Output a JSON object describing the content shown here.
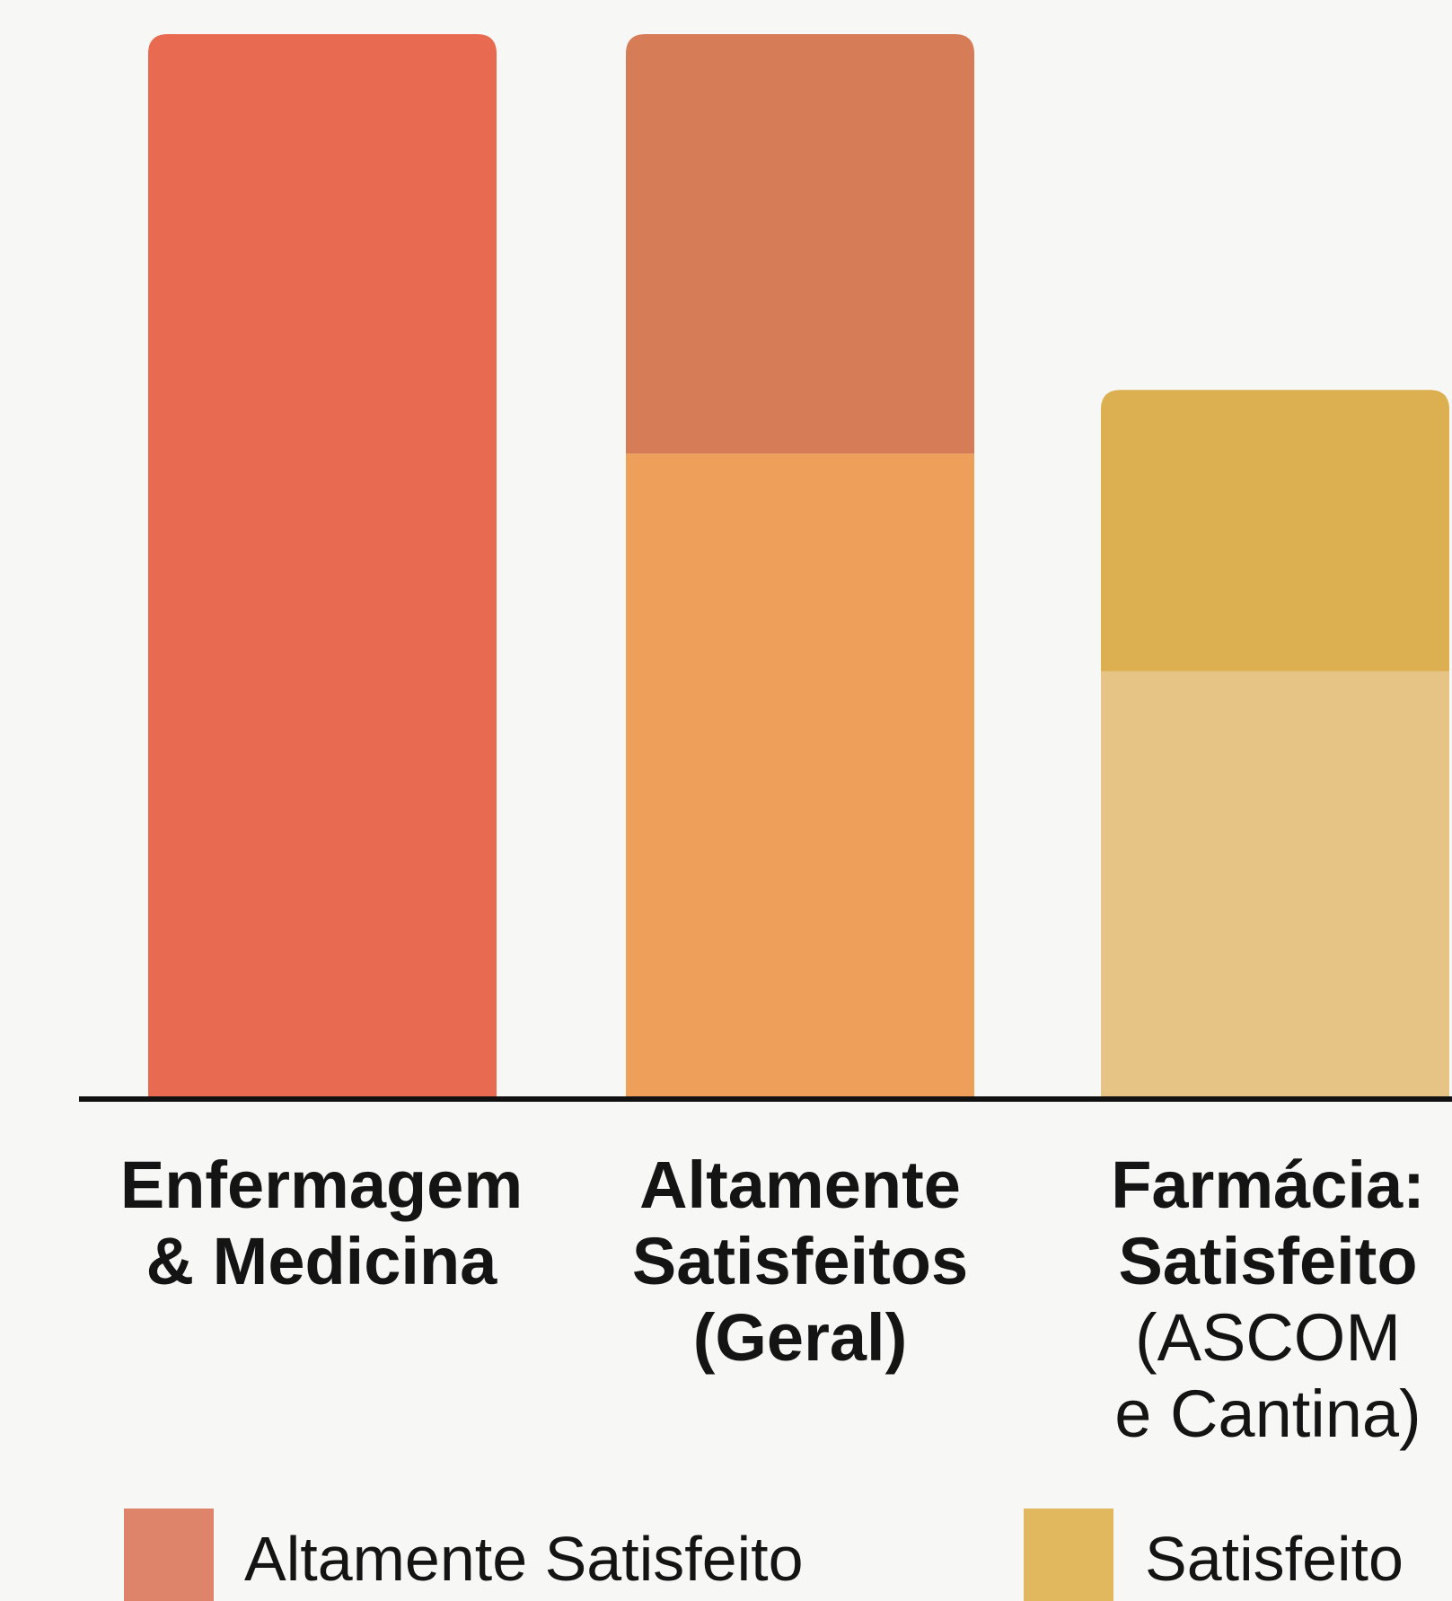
{
  "chart_data": {
    "type": "bar",
    "title": "",
    "xlabel": "",
    "ylabel": "",
    "ylim": [
      0,
      100
    ],
    "grid": false,
    "legend_position": "bottom",
    "categories": [
      {
        "lines": [
          "Enfermagem",
          "& Medicina"
        ]
      },
      {
        "lines": [
          "Altamente",
          "Satisfeitos",
          "(Geral)"
        ]
      },
      {
        "lines": [
          "Farmácia:",
          "Satisfeito",
          "(ASCOM",
          "e Cantina)"
        ]
      }
    ],
    "bars": [
      {
        "segments": [
          {
            "series": "Altamente Satisfeito",
            "value": 100,
            "color": "#e86a50"
          }
        ]
      },
      {
        "segments": [
          {
            "series": "Altamente Satisfeito",
            "value": 60.5,
            "color": "#eea05a"
          },
          {
            "series": "Altamente Satisfeito",
            "value": 39.5,
            "color": "#d67c57"
          }
        ]
      },
      {
        "segments": [
          {
            "series": "Satisfeito",
            "value": 40,
            "color": "#e5c486"
          },
          {
            "series": "Satisfeito",
            "value": 26.5,
            "color": "#dcb050"
          }
        ]
      }
    ],
    "legend": [
      {
        "label": "Altamente Satisfeito",
        "color": "#dd846a"
      },
      {
        "label": "Satisfeito",
        "color": "#e2b85e"
      }
    ]
  }
}
